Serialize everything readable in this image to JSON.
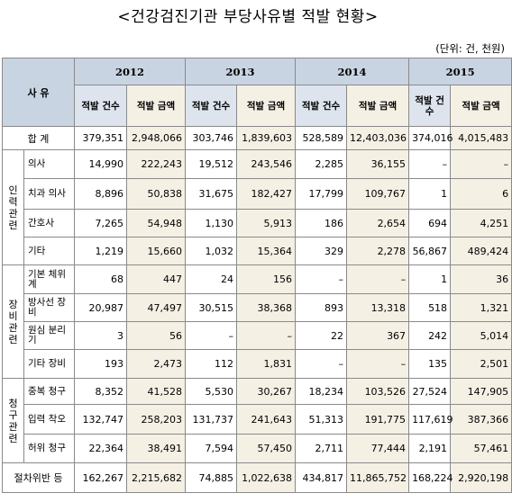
{
  "title": "<건강검진기관 부당사유별 적발 현황>",
  "unit": "(단위: 건, 천원)",
  "header": {
    "reason": "사 유",
    "years": [
      "2012",
      "2013",
      "2014",
      "2015"
    ],
    "count_label": "적발 건수",
    "amount_label": "적발 금액"
  },
  "rows": [
    {
      "group": "",
      "label": "합 계",
      "values": [
        "379,351",
        "2,948,066",
        "303,746",
        "1,839,603",
        "528,589",
        "12,403,036",
        "374,016",
        "4,015,483"
      ]
    },
    {
      "group": "인력관련",
      "label": "의사",
      "values": [
        "14,990",
        "222,243",
        "19,512",
        "243,546",
        "2,285",
        "36,155",
        "–",
        "–"
      ]
    },
    {
      "group": "인력관련",
      "label": "치과 의사",
      "values": [
        "8,896",
        "50,838",
        "31,675",
        "182,427",
        "17,799",
        "109,767",
        "1",
        "6"
      ]
    },
    {
      "group": "인력관련",
      "label": "간호사",
      "values": [
        "7,265",
        "54,948",
        "1,130",
        "5,913",
        "186",
        "2,654",
        "694",
        "4,251"
      ]
    },
    {
      "group": "인력관련",
      "label": "기타",
      "values": [
        "1,219",
        "15,660",
        "1,032",
        "15,364",
        "329",
        "2,278",
        "56,867",
        "489,424"
      ]
    },
    {
      "group": "장비관련",
      "label": "기본 체위계",
      "values": [
        "68",
        "447",
        "24",
        "156",
        "–",
        "–",
        "1",
        "36"
      ]
    },
    {
      "group": "장비관련",
      "label": "방사선 장비",
      "values": [
        "20,987",
        "47,497",
        "30,515",
        "38,368",
        "893",
        "13,318",
        "518",
        "1,321"
      ]
    },
    {
      "group": "장비관련",
      "label": "원심 분리기",
      "values": [
        "3",
        "56",
        "–",
        "–",
        "22",
        "367",
        "242",
        "5,014"
      ]
    },
    {
      "group": "장비관련",
      "label": "기타 장비",
      "values": [
        "193",
        "2,473",
        "112",
        "1,831",
        "–",
        "–",
        "135",
        "2,501"
      ]
    },
    {
      "group": "청구관련",
      "label": "중복 청구",
      "values": [
        "8,352",
        "41,528",
        "5,530",
        "30,267",
        "18,234",
        "103,526",
        "27,524",
        "147,905"
      ]
    },
    {
      "group": "청구관련",
      "label": "입력 착오",
      "values": [
        "132,747",
        "258,203",
        "131,737",
        "241,643",
        "51,313",
        "191,775",
        "117,619",
        "387,366"
      ]
    },
    {
      "group": "청구관련",
      "label": "허위 청구",
      "values": [
        "22,364",
        "38,491",
        "7,594",
        "57,450",
        "2,711",
        "77,444",
        "2,191",
        "57,461"
      ]
    },
    {
      "group": "",
      "label": "절차위반 등",
      "values": [
        "162,267",
        "2,215,682",
        "74,885",
        "1,022,638",
        "434,817",
        "11,865,752",
        "168,224",
        "2,920,198"
      ]
    }
  ],
  "groups": {
    "staff": "인력관련",
    "equipment": "장비관련",
    "claims": "청구관련"
  }
}
